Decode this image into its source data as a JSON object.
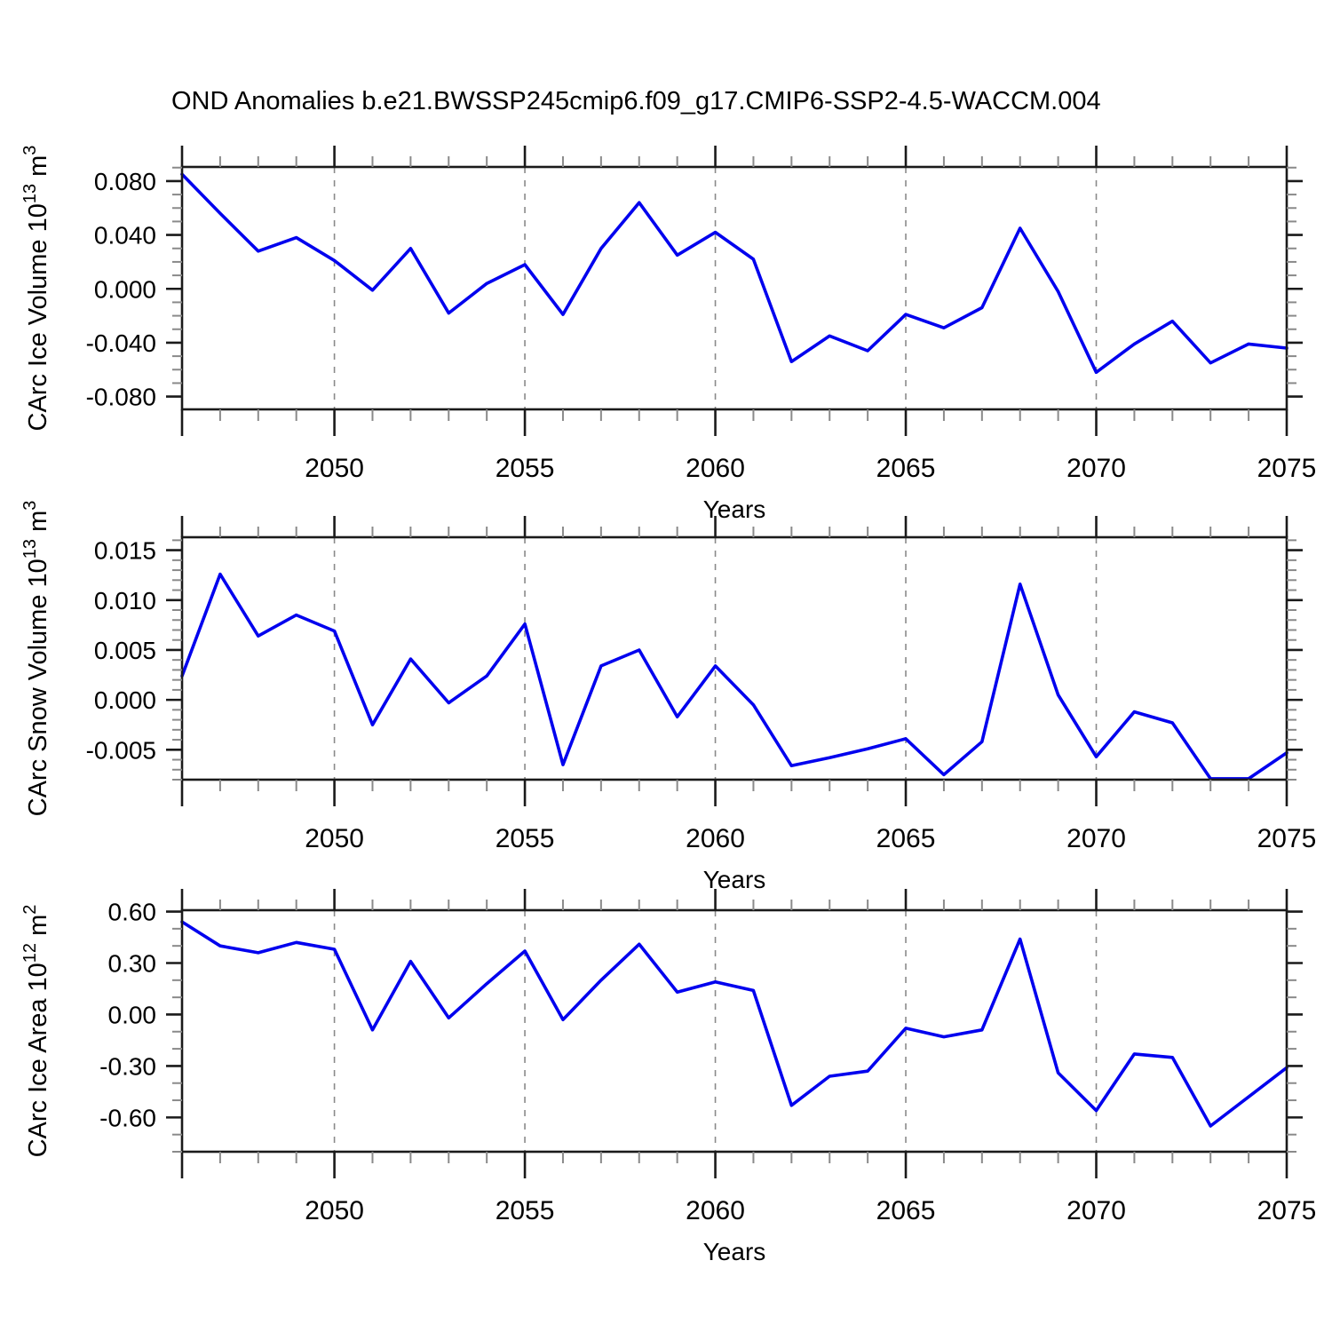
{
  "title": "OND Anomalies b.e21.BWSSP245cmip6.f09_g17.CMIP6-SSP2-4.5-WACCM.004",
  "colors": {
    "line": "#0000ee",
    "axis": "#1a1a1a",
    "grid": "#8a8a8a",
    "minor_tick": "#8a8a8a",
    "text": "#000000"
  },
  "x_axis": {
    "label": "Years",
    "range": [
      2046,
      2075
    ],
    "ticks": [
      2050,
      2055,
      2060,
      2065,
      2070,
      2075
    ],
    "minor_step": 1,
    "gridline_years": [
      2050,
      2055,
      2060,
      2065,
      2070
    ]
  },
  "years": [
    2046,
    2047,
    2048,
    2049,
    2050,
    2051,
    2052,
    2053,
    2054,
    2055,
    2056,
    2057,
    2058,
    2059,
    2060,
    2061,
    2062,
    2063,
    2064,
    2065,
    2066,
    2067,
    2068,
    2069,
    2070,
    2071,
    2072,
    2073,
    2074,
    2075
  ],
  "chart_data": [
    {
      "type": "line",
      "title": "OND Anomalies b.e21.BWSSP245cmip6.f09_g17.CMIP6-SSP2-4.5-WACCM.004",
      "xlabel": "Years",
      "ylabel": "CArc Ice Volume 10¹³ m³",
      "ylabel_parts": [
        {
          "text": "CArc Ice Volume 10",
          "sup": false
        },
        {
          "text": "13",
          "sup": true
        },
        {
          "text": " m",
          "sup": false
        },
        {
          "text": "3",
          "sup": true
        }
      ],
      "ylim": [
        -0.0895,
        0.0905
      ],
      "ytick_values": [
        0.08,
        0.04,
        0.0,
        -0.04,
        -0.08
      ],
      "ytick_labels": [
        "0.080",
        "0.040",
        "0.000",
        "-0.040",
        "-0.080"
      ],
      "yminor_step": 0.01,
      "grid": true,
      "legend": "none",
      "x": [
        2046,
        2047,
        2048,
        2049,
        2050,
        2051,
        2052,
        2053,
        2054,
        2055,
        2056,
        2057,
        2058,
        2059,
        2060,
        2061,
        2062,
        2063,
        2064,
        2065,
        2066,
        2067,
        2068,
        2069,
        2070,
        2071,
        2072,
        2073,
        2074,
        2075
      ],
      "values": [
        0.085,
        0.056,
        0.028,
        0.038,
        0.021,
        -0.001,
        0.03,
        -0.018,
        0.004,
        0.018,
        -0.019,
        0.03,
        0.064,
        0.025,
        0.042,
        0.022,
        -0.054,
        -0.035,
        -0.046,
        -0.019,
        -0.029,
        -0.014,
        0.045,
        -0.002,
        -0.062,
        -0.041,
        -0.024,
        -0.055,
        -0.041,
        -0.044
      ]
    },
    {
      "type": "line",
      "title": "OND Anomalies b.e21.BWSSP245cmip6.f09_g17.CMIP6-SSP2-4.5-WACCM.004",
      "xlabel": "Years",
      "ylabel": "CArc Snow Volume 10¹³ m³",
      "ylabel_parts": [
        {
          "text": "CArc Snow Volume 10",
          "sup": false
        },
        {
          "text": "13",
          "sup": true
        },
        {
          "text": " m",
          "sup": false
        },
        {
          "text": "3",
          "sup": true
        }
      ],
      "ylim": [
        -0.008,
        0.0163
      ],
      "ytick_values": [
        0.015,
        0.01,
        0.005,
        0.0,
        -0.005
      ],
      "ytick_labels": [
        "0.015",
        "0.010",
        "0.005",
        "0.000",
        "-0.005"
      ],
      "yminor_step": 0.001,
      "grid": true,
      "legend": "none",
      "x": [
        2046,
        2047,
        2048,
        2049,
        2050,
        2051,
        2052,
        2053,
        2054,
        2055,
        2056,
        2057,
        2058,
        2059,
        2060,
        2061,
        2062,
        2063,
        2064,
        2065,
        2066,
        2067,
        2068,
        2069,
        2070,
        2071,
        2072,
        2073,
        2074,
        2075
      ],
      "values": [
        0.0024,
        0.0126,
        0.0064,
        0.0085,
        0.0069,
        -0.0025,
        0.0041,
        -0.0003,
        0.0024,
        0.0076,
        -0.0065,
        0.0034,
        0.005,
        -0.0017,
        0.0034,
        -0.0005,
        -0.0066,
        -0.0058,
        -0.0049,
        -0.0039,
        -0.0075,
        -0.0042,
        0.0116,
        0.0005,
        -0.0057,
        -0.0012,
        -0.0023,
        -0.0079,
        -0.0079,
        -0.0053
      ]
    },
    {
      "type": "line",
      "title": "OND Anomalies b.e21.BWSSP245cmip6.f09_g17.CMIP6-SSP2-4.5-WACCM.004",
      "xlabel": "Years",
      "ylabel": "CArc Ice Area 10¹² m²",
      "ylabel_parts": [
        {
          "text": "CArc Ice Area 10",
          "sup": false
        },
        {
          "text": "12",
          "sup": true
        },
        {
          "text": " m",
          "sup": false
        },
        {
          "text": "2",
          "sup": true
        }
      ],
      "ylim": [
        -0.8,
        0.608
      ],
      "ytick_values": [
        0.6,
        0.3,
        0.0,
        -0.3,
        -0.6
      ],
      "ytick_labels": [
        "0.60",
        "0.30",
        "0.00",
        "-0.30",
        "-0.60"
      ],
      "yminor_step": 0.1,
      "grid": true,
      "legend": "none",
      "x": [
        2046,
        2047,
        2048,
        2049,
        2050,
        2051,
        2052,
        2053,
        2054,
        2055,
        2056,
        2057,
        2058,
        2059,
        2060,
        2061,
        2062,
        2063,
        2064,
        2065,
        2066,
        2067,
        2068,
        2069,
        2070,
        2071,
        2072,
        2073,
        2074,
        2075
      ],
      "values": [
        0.54,
        0.4,
        0.36,
        0.42,
        0.38,
        -0.09,
        0.31,
        -0.02,
        0.18,
        0.37,
        -0.03,
        0.2,
        0.41,
        0.13,
        0.19,
        0.14,
        -0.53,
        -0.36,
        -0.33,
        -0.08,
        -0.13,
        -0.09,
        0.44,
        -0.34,
        -0.56,
        -0.23,
        -0.25,
        -0.65,
        -0.48,
        -0.31
      ]
    }
  ]
}
